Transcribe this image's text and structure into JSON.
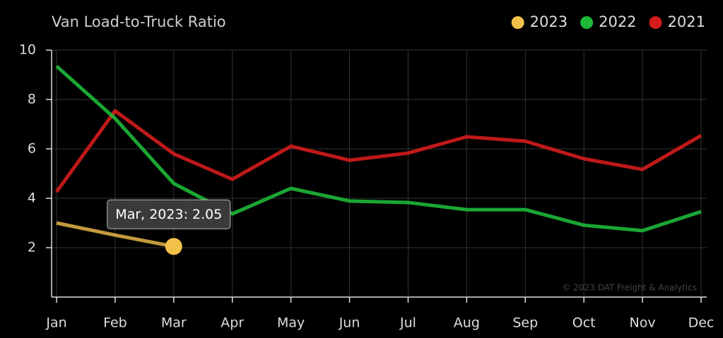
{
  "chart_data": {
    "type": "line",
    "title": "Van Load-to-Truck Ratio",
    "categories": [
      "Jan",
      "Feb",
      "Mar",
      "Apr",
      "May",
      "Jun",
      "Jul",
      "Aug",
      "Sep",
      "Oct",
      "Nov",
      "Dec"
    ],
    "series": [
      {
        "name": "2023",
        "color": "#f2c14a",
        "values": [
          3.0,
          2.51,
          2.05,
          null,
          null,
          null,
          null,
          null,
          null,
          null,
          null,
          null
        ]
      },
      {
        "name": "2022",
        "color": "#1db838",
        "values": [
          9.35,
          7.23,
          4.6,
          3.37,
          4.4,
          3.89,
          3.83,
          3.54,
          3.54,
          2.91,
          2.69,
          3.46
        ]
      },
      {
        "name": "2021",
        "color": "#d41c1c",
        "values": [
          4.26,
          7.54,
          5.8,
          4.77,
          6.11,
          5.54,
          5.83,
          6.49,
          6.31,
          5.6,
          5.17,
          6.54
        ]
      }
    ],
    "ylim": [
      0,
      10
    ],
    "yticks": [
      2,
      4,
      6,
      8,
      10
    ],
    "grid": true,
    "tooltip": "Mar, 2023: 2.05",
    "watermark": "© 2023 DAT Freight & Analytics"
  }
}
